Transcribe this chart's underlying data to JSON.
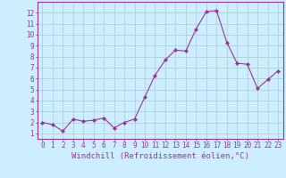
{
  "x": [
    0,
    1,
    2,
    3,
    4,
    5,
    6,
    7,
    8,
    9,
    10,
    11,
    12,
    13,
    14,
    15,
    16,
    17,
    18,
    19,
    20,
    21,
    22,
    23
  ],
  "y": [
    2,
    1.8,
    1.2,
    2.3,
    2.1,
    2.2,
    2.4,
    1.5,
    2.0,
    2.3,
    4.3,
    6.3,
    7.7,
    8.6,
    8.5,
    10.5,
    12.1,
    12.2,
    9.3,
    7.4,
    7.3,
    5.1,
    5.9,
    6.7
  ],
  "line_color": "#993399",
  "marker": "D",
  "marker_size": 2,
  "bg_color": "#cceeff",
  "grid_color": "#aacccc",
  "xlabel": "Windchill (Refroidissement éolien,°C)",
  "xlim": [
    -0.5,
    23.5
  ],
  "ylim": [
    0.5,
    13
  ],
  "xticks": [
    0,
    1,
    2,
    3,
    4,
    5,
    6,
    7,
    8,
    9,
    10,
    11,
    12,
    13,
    14,
    15,
    16,
    17,
    18,
    19,
    20,
    21,
    22,
    23
  ],
  "yticks": [
    1,
    2,
    3,
    4,
    5,
    6,
    7,
    8,
    9,
    10,
    11,
    12
  ],
  "tick_color": "#993399",
  "spine_color": "#993399",
  "label_fontsize": 6.5,
  "tick_fontsize": 5.5
}
